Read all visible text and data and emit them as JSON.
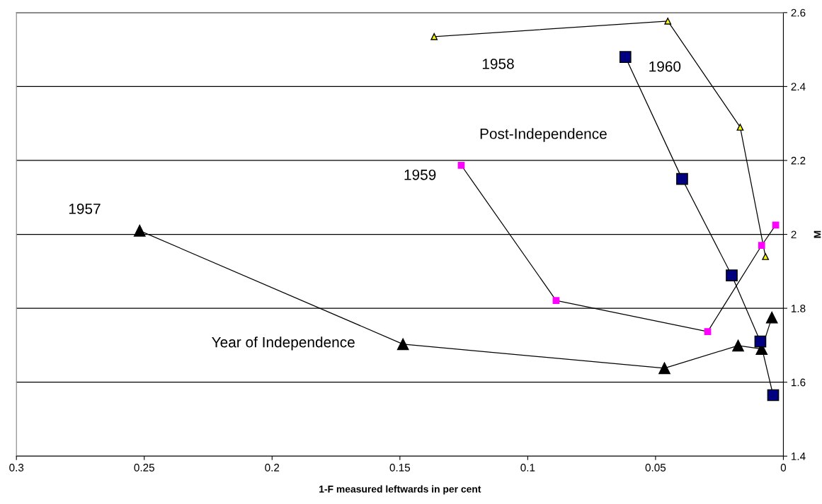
{
  "chart_data": {
    "type": "line",
    "xlabel": "1-F measured leftwards in per cent",
    "ylabel": "M",
    "xlim": [
      0.3,
      0
    ],
    "xticks": [
      0.3,
      0.25,
      0.2,
      0.15,
      0.1,
      0.05,
      0
    ],
    "ylim": [
      1.4,
      2.6
    ],
    "yticks": [
      1.4,
      1.6,
      1.8,
      2,
      2.2,
      2.4,
      2.6
    ],
    "grid": "y",
    "legend": false,
    "line_style": "solid",
    "series": [
      {
        "name": "1957",
        "color": "#000000",
        "marker": "triangle",
        "x": [
          0.2518,
          0.1488,
          0.0465,
          0.0177,
          0.0085,
          0.0045
        ],
        "values": [
          2.01,
          1.703,
          1.638,
          1.699,
          1.69,
          1.775
        ]
      },
      {
        "name": "1958",
        "color": "#ffff00",
        "marker": "triangle",
        "x": [
          0.1366,
          0.0452,
          0.0169,
          0.007
        ],
        "values": [
          2.535,
          2.577,
          2.29,
          1.94
        ]
      },
      {
        "name": "1959",
        "color": "#ff00ff",
        "marker": "square",
        "x": [
          0.126,
          0.0889,
          0.0296,
          0.0085,
          0.003
        ],
        "values": [
          2.187,
          1.821,
          1.737,
          1.97,
          2.025
        ]
      },
      {
        "name": "1960",
        "color": "#000080",
        "marker": "square",
        "x": [
          0.0618,
          0.0396,
          0.0202,
          0.009,
          0.004
        ],
        "values": [
          2.48,
          2.15,
          1.889,
          1.71,
          1.565
        ]
      }
    ],
    "annotations": [
      "Post-Independence",
      "Year of Independence"
    ]
  }
}
